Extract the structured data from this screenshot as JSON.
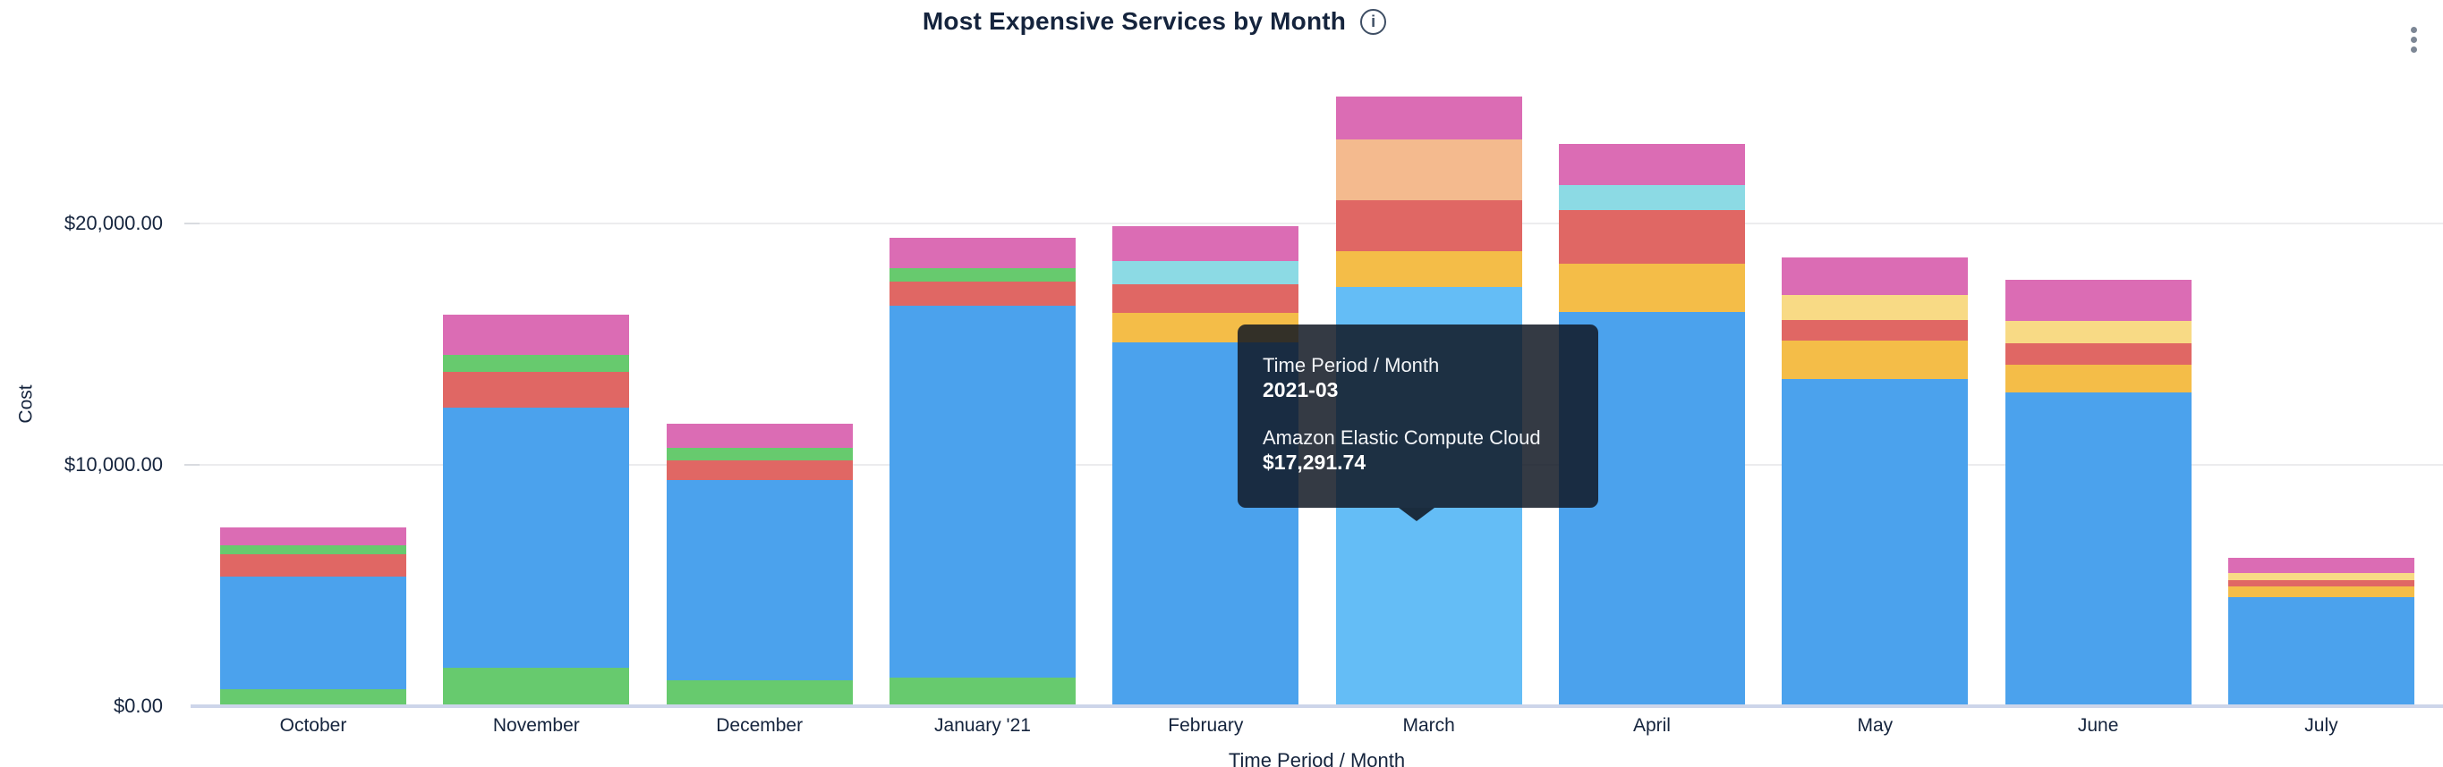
{
  "header": {
    "title": "Most Expensive Services by Month",
    "info_icon_glyph": "i"
  },
  "chart_data": {
    "type": "bar",
    "stacked": true,
    "title": "Most Expensive Services by Month",
    "xlabel": "Time Period / Month",
    "ylabel": "Cost",
    "ylim": [
      0,
      27000
    ],
    "grid": true,
    "legend": "none",
    "y_ticks": [
      {
        "label": "$0.00",
        "value": 0
      },
      {
        "label": "$10,000.00",
        "value": 10000
      },
      {
        "label": "$20,000.00",
        "value": 20000
      }
    ],
    "categories": [
      "October",
      "November",
      "December",
      "January '21",
      "February",
      "March",
      "April",
      "May",
      "June",
      "July"
    ],
    "palette": {
      "blue": "#4BA2ED",
      "blue_highlight": "#64BDF6",
      "green": "#67CA6E",
      "red": "#E06764",
      "pink": "#DB6CB4",
      "yellow": "#F4BD48",
      "peach": "#F4BA8E",
      "light_yellow": "#F8DA85",
      "teal": "#8CDAE4"
    },
    "note": "Stacked cost segments listed bottom-to-top; values in USD estimated from axis scale. Only the hovered March segment is identified on screen.",
    "bars": [
      {
        "label": "October",
        "segments": [
          {
            "c": "green",
            "v": 630
          },
          {
            "c": "blue",
            "v": 4670
          },
          {
            "c": "red",
            "v": 925
          },
          {
            "c": "green",
            "v": 370
          },
          {
            "c": "pink",
            "v": 740
          }
        ]
      },
      {
        "label": "November",
        "segments": [
          {
            "c": "green",
            "v": 1520
          },
          {
            "c": "blue",
            "v": 10780
          },
          {
            "c": "red",
            "v": 1480
          },
          {
            "c": "green",
            "v": 700
          },
          {
            "c": "pink",
            "v": 1670
          }
        ]
      },
      {
        "label": "December",
        "segments": [
          {
            "c": "green",
            "v": 1000
          },
          {
            "c": "blue",
            "v": 8300
          },
          {
            "c": "red",
            "v": 815
          },
          {
            "c": "green",
            "v": 520
          },
          {
            "c": "pink",
            "v": 1000
          }
        ]
      },
      {
        "label": "January '21",
        "segments": [
          {
            "c": "green",
            "v": 1110
          },
          {
            "c": "blue",
            "v": 15410
          },
          {
            "c": "red",
            "v": 1000
          },
          {
            "c": "green",
            "v": 555
          },
          {
            "c": "pink",
            "v": 1260
          }
        ]
      },
      {
        "label": "February",
        "segments": [
          {
            "c": "blue",
            "v": 15000
          },
          {
            "c": "yellow",
            "v": 1220
          },
          {
            "c": "red",
            "v": 1185
          },
          {
            "c": "teal",
            "v": 965
          },
          {
            "c": "pink",
            "v": 1445
          }
        ]
      },
      {
        "label": "March",
        "highlighted": true,
        "segments": [
          {
            "c": "blue_highlight",
            "v": 17291.74,
            "service": "Amazon Elastic Compute Cloud"
          },
          {
            "c": "yellow",
            "v": 1480
          },
          {
            "c": "red",
            "v": 2110
          },
          {
            "c": "peach",
            "v": 2520
          },
          {
            "c": "pink",
            "v": 1780
          }
        ]
      },
      {
        "label": "April",
        "segments": [
          {
            "c": "blue",
            "v": 16260
          },
          {
            "c": "yellow",
            "v": 2000
          },
          {
            "c": "red",
            "v": 2220
          },
          {
            "c": "teal",
            "v": 1040
          },
          {
            "c": "pink",
            "v": 1705
          }
        ]
      },
      {
        "label": "May",
        "segments": [
          {
            "c": "blue",
            "v": 13480
          },
          {
            "c": "yellow",
            "v": 1590
          },
          {
            "c": "red",
            "v": 850
          },
          {
            "c": "light_yellow",
            "v": 1040
          },
          {
            "c": "pink",
            "v": 1555
          }
        ]
      },
      {
        "label": "June",
        "segments": [
          {
            "c": "blue",
            "v": 12925
          },
          {
            "c": "yellow",
            "v": 1150
          },
          {
            "c": "red",
            "v": 890
          },
          {
            "c": "light_yellow",
            "v": 925
          },
          {
            "c": "pink",
            "v": 1705
          }
        ]
      },
      {
        "label": "July",
        "segments": [
          {
            "c": "blue",
            "v": 4445
          },
          {
            "c": "yellow",
            "v": 445
          },
          {
            "c": "red",
            "v": 260
          },
          {
            "c": "light_yellow",
            "v": 295
          },
          {
            "c": "pink",
            "v": 630
          }
        ]
      }
    ]
  },
  "tooltip": {
    "dimension_label": "Time Period / Month",
    "dimension_value": "2021-03",
    "series_label": "Amazon Elastic Compute Cloud",
    "series_value": "$17,291.74"
  }
}
